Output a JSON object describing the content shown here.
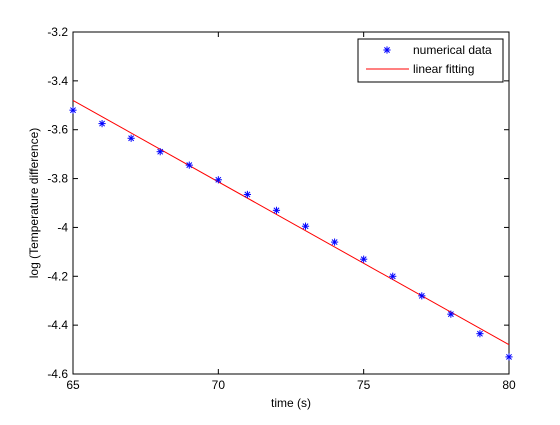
{
  "chart_data": {
    "type": "scatter",
    "title": "",
    "xlabel": "time (s)",
    "ylabel": "log (Temperature difference)",
    "xlim": [
      65,
      80
    ],
    "ylim": [
      -4.6,
      -3.2
    ],
    "xticks": [
      65,
      70,
      75,
      80
    ],
    "yticks": [
      -3.2,
      -3.4,
      -3.6,
      -3.8,
      -4,
      -4.2,
      -4.4,
      -4.6
    ],
    "grid": false,
    "legend_position": "top-right",
    "series": [
      {
        "name": "numerical data",
        "kind": "scatter",
        "marker": "asterisk",
        "color": "#0000ff",
        "x": [
          65,
          66,
          67,
          68,
          69,
          70,
          71,
          72,
          73,
          74,
          75,
          76,
          77,
          78,
          79,
          80
        ],
        "y": [
          -3.52,
          -3.575,
          -3.635,
          -3.69,
          -3.745,
          -3.805,
          -3.865,
          -3.93,
          -3.995,
          -4.06,
          -4.13,
          -4.2,
          -4.28,
          -4.355,
          -4.435,
          -4.53
        ]
      },
      {
        "name": "linear fitting",
        "kind": "line",
        "color": "#ff0000",
        "x": [
          65,
          80
        ],
        "y": [
          -3.48,
          -4.48
        ]
      }
    ]
  }
}
